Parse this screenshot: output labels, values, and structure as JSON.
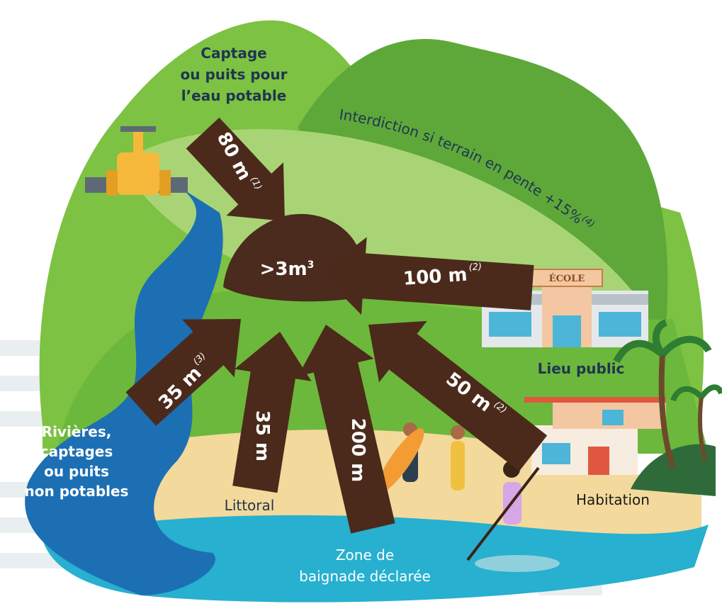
{
  "labels": {
    "drinking_source": [
      "Captage",
      "ou puits pour",
      "l’eau potable"
    ],
    "slope_rule": {
      "text": "Interdiction si terrain en pente +15%",
      "note": "(4)"
    },
    "pile": {
      "text": ">3m",
      "exponent": "3"
    },
    "school_sign": "ÉCOLE",
    "public_place": "Lieu public",
    "rivers": [
      "Rivières,",
      "captages",
      "ou puits",
      "non potables"
    ],
    "coast": "Littoral",
    "house": "Habitation",
    "bathing_zone": [
      "Zone de",
      "baignade déclarée"
    ]
  },
  "arrows": [
    {
      "distance": "80 m",
      "note": "(1)"
    },
    {
      "distance": "100 m",
      "note": "(2)"
    },
    {
      "distance": "35 m",
      "note": "(3)"
    },
    {
      "distance": "35 m"
    },
    {
      "distance": "200 m"
    },
    {
      "distance": "50 m",
      "note": "(2)"
    }
  ]
}
